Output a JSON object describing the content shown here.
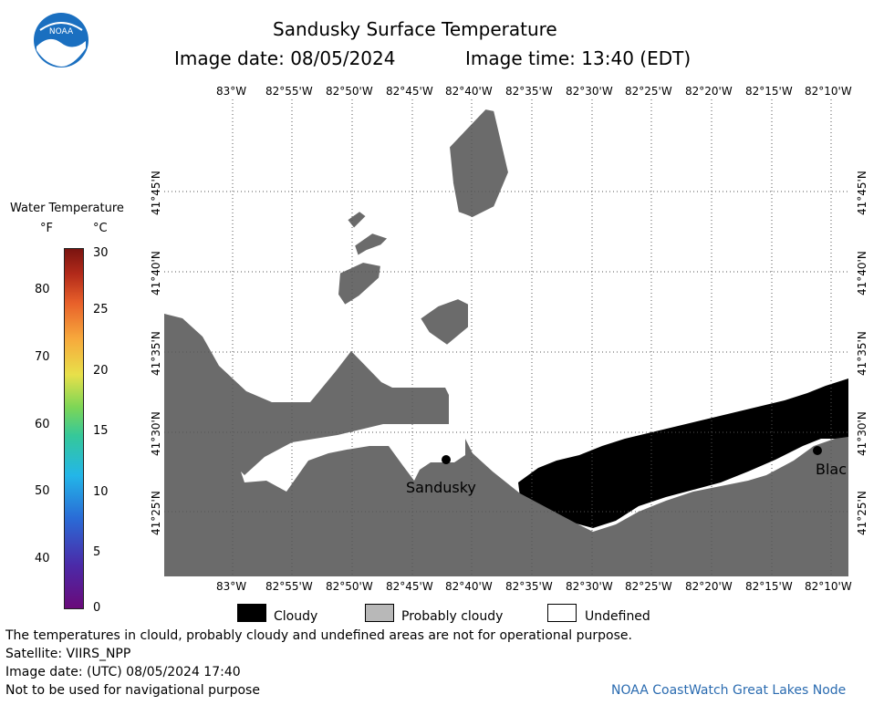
{
  "header": {
    "title": "Sandusky Surface Temperature",
    "image_date": "Image date: 08/05/2024",
    "image_time": "Image time: 13:40 (EDT)"
  },
  "logo": {
    "text": "NOAA"
  },
  "colorbar": {
    "title": "Water Temperature",
    "unit_f": "°F",
    "unit_c": "°C",
    "f_ticks": [
      "80",
      "70",
      "60",
      "50",
      "40"
    ],
    "c_ticks": [
      "30",
      "25",
      "20",
      "15",
      "10",
      "5",
      "0"
    ]
  },
  "map": {
    "lon_labels": [
      "83°W",
      "82°55'W",
      "82°50'W",
      "82°45'W",
      "82°40'W",
      "82°35'W",
      "82°30'W",
      "82°25'W",
      "82°20'W",
      "82°15'W",
      "82°10'W"
    ],
    "lat_labels": [
      "41°45'N",
      "41°40'N",
      "41°35'N",
      "41°30'N",
      "41°25'N"
    ],
    "cities": [
      {
        "name": "Sandusky"
      },
      {
        "name": "Blac"
      }
    ],
    "colors": {
      "land": "#6b6b6b",
      "cloud": "#000000",
      "undefined": "#ffffff"
    }
  },
  "legend": {
    "cloudy": "Cloudy",
    "probably_cloudy": "Probably cloudy",
    "undefined": "Undefined"
  },
  "footer": {
    "note1": "The temperatures in clould, probably cloudy and undefined areas are not for operational purpose.",
    "satellite": "Satellite: VIIRS_NPP",
    "utc_date": "Image date: (UTC) 08/05/2024  17:40",
    "nav_note": "Not to be used for navigational purpose",
    "credit": "NOAA CoastWatch Great Lakes Node"
  }
}
